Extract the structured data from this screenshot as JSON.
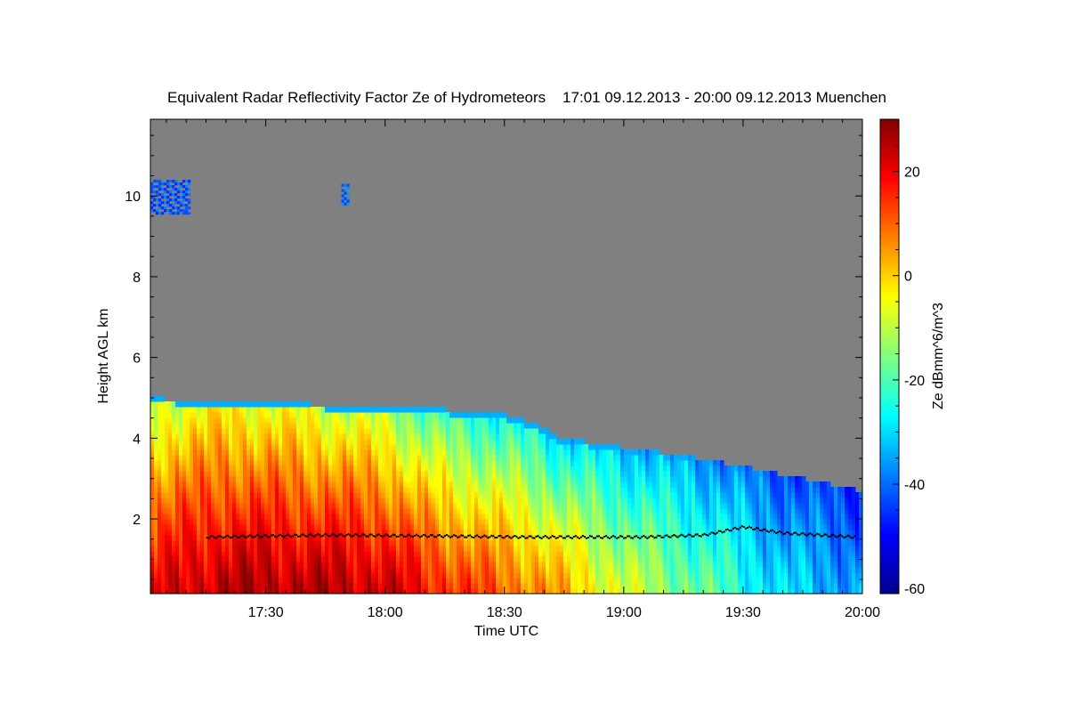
{
  "chart_data": {
    "type": "heatmap",
    "title": "Equivalent Radar Reflectivity Factor Ze of Hydrometeors    17:01 09.12.2013 - 20:00 09.12.2013 Muenchen",
    "xlabel": "Time UTC",
    "ylabel": "Height AGL km",
    "colorbar_label": "Ze dBmm^6/m^3",
    "x_range_minutes_utc": [
      1021,
      1200
    ],
    "y_range_km": [
      0.15,
      11.9
    ],
    "colorbar_range": [
      -61,
      30
    ],
    "x_ticks": [
      {
        "minute": 1050,
        "label": "17:30"
      },
      {
        "minute": 1080,
        "label": "18:00"
      },
      {
        "minute": 1110,
        "label": "18:30"
      },
      {
        "minute": 1140,
        "label": "19:00"
      },
      {
        "minute": 1170,
        "label": "19:30"
      },
      {
        "minute": 1200,
        "label": "20:00"
      }
    ],
    "y_ticks": [
      {
        "value": 2,
        "label": "2"
      },
      {
        "value": 4,
        "label": "4"
      },
      {
        "value": 6,
        "label": "6"
      },
      {
        "value": 8,
        "label": "8"
      },
      {
        "value": 10,
        "label": "10"
      }
    ],
    "colorbar_ticks": [
      {
        "value": 20,
        "label": "20"
      },
      {
        "value": 0,
        "label": "0"
      },
      {
        "value": -20,
        "label": "-20"
      },
      {
        "value": -40,
        "label": "-40"
      },
      {
        "value": -60,
        "label": "-60"
      }
    ],
    "no_data_color": "#808080",
    "melting_layer_marker_color": "#000000",
    "cloud_top_km": [
      {
        "minute": 1021,
        "top": 5.0
      },
      {
        "minute": 1030,
        "top": 4.95
      },
      {
        "minute": 1060,
        "top": 4.85
      },
      {
        "minute": 1090,
        "top": 4.75
      },
      {
        "minute": 1110,
        "top": 4.6
      },
      {
        "minute": 1119,
        "top": 4.3
      },
      {
        "minute": 1124,
        "top": 4.0
      },
      {
        "minute": 1135,
        "top": 3.85
      },
      {
        "minute": 1160,
        "top": 3.5
      },
      {
        "minute": 1175,
        "top": 3.2
      },
      {
        "minute": 1185,
        "top": 3.0
      },
      {
        "minute": 1200,
        "top": 2.7
      }
    ],
    "reflectivity_profile_dbz": [
      {
        "minute": 1021,
        "surface": 20,
        "top": -10
      },
      {
        "minute": 1040,
        "surface": 26,
        "top": -5
      },
      {
        "minute": 1060,
        "surface": 26,
        "top": -8
      },
      {
        "minute": 1080,
        "surface": 24,
        "top": -12
      },
      {
        "minute": 1090,
        "surface": 18,
        "top": -20
      },
      {
        "minute": 1105,
        "surface": 12,
        "top": -25
      },
      {
        "minute": 1120,
        "surface": 6,
        "top": -28
      },
      {
        "minute": 1140,
        "surface": -8,
        "top": -32
      },
      {
        "minute": 1160,
        "surface": -18,
        "top": -36
      },
      {
        "minute": 1180,
        "surface": -30,
        "top": -42
      },
      {
        "minute": 1200,
        "surface": -36,
        "top": -46
      }
    ],
    "upper_cloud_patches": [
      {
        "minute_start": 1021,
        "minute_end": 1031,
        "height_bottom_km": 9.6,
        "height_top_km": 10.4,
        "dbz": -42
      },
      {
        "minute_start": 1069,
        "minute_end": 1071,
        "height_bottom_km": 9.8,
        "height_top_km": 10.3,
        "dbz": -40
      }
    ],
    "melting_layer_km": [
      {
        "minute": 1035,
        "height": 1.55
      },
      {
        "minute": 1065,
        "height": 1.6
      },
      {
        "minute": 1090,
        "height": 1.58
      },
      {
        "minute": 1115,
        "height": 1.55
      },
      {
        "minute": 1145,
        "height": 1.55
      },
      {
        "minute": 1160,
        "height": 1.6
      },
      {
        "minute": 1170,
        "height": 1.8
      },
      {
        "minute": 1180,
        "height": 1.65
      },
      {
        "minute": 1198,
        "height": 1.55
      }
    ]
  }
}
